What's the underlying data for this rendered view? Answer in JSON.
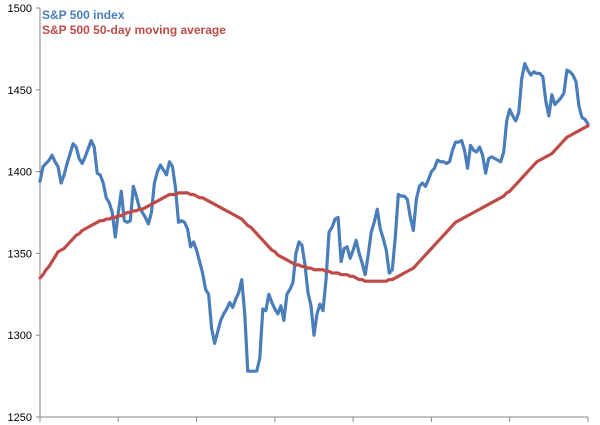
{
  "chart_data": {
    "type": "line",
    "title": "",
    "xlabel": "",
    "ylabel": "",
    "ylim": [
      1250,
      1500
    ],
    "yticks": [
      1250,
      1300,
      1350,
      1400,
      1450,
      1500
    ],
    "grid": false,
    "legend": "top-left",
    "series": [
      {
        "name": "S&P 500 index",
        "color": "#4a7ebb",
        "values": [
          1394,
          1403,
          1405,
          1407,
          1410,
          1406,
          1403,
          1393,
          1398,
          1405,
          1411,
          1417,
          1415,
          1408,
          1405,
          1409,
          1414,
          1419,
          1415,
          1399,
          1398,
          1393,
          1384,
          1381,
          1375,
          1360,
          1375,
          1388,
          1370,
          1369,
          1370,
          1391,
          1385,
          1378,
          1375,
          1372,
          1368,
          1375,
          1393,
          1400,
          1404,
          1401,
          1398,
          1406,
          1403,
          1390,
          1369,
          1370,
          1369,
          1365,
          1354,
          1357,
          1352,
          1345,
          1338,
          1328,
          1325,
          1304,
          1295,
          1302,
          1309,
          1313,
          1316,
          1320,
          1317,
          1322,
          1326,
          1334,
          1313,
          1278,
          1278,
          1278,
          1278,
          1286,
          1316,
          1315,
          1325,
          1320,
          1316,
          1313,
          1318,
          1309,
          1325,
          1328,
          1332,
          1350,
          1357,
          1355,
          1343,
          1326,
          1318,
          1300,
          1313,
          1319,
          1315,
          1334,
          1363,
          1366,
          1371,
          1372,
          1345,
          1353,
          1354,
          1347,
          1352,
          1358,
          1350,
          1344,
          1337,
          1349,
          1363,
          1369,
          1377,
          1365,
          1359,
          1352,
          1338,
          1340,
          1360,
          1386,
          1385,
          1385,
          1383,
          1372,
          1364,
          1383,
          1391,
          1393,
          1391,
          1395,
          1400,
          1402,
          1407,
          1406,
          1406,
          1405,
          1406,
          1413,
          1418,
          1418,
          1419,
          1413,
          1402,
          1416,
          1413,
          1412,
          1415,
          1410,
          1399,
          1408,
          1409,
          1408,
          1407,
          1406,
          1412,
          1431,
          1438,
          1434,
          1431,
          1436,
          1457,
          1466,
          1462,
          1459,
          1461,
          1460,
          1460,
          1458,
          1443,
          1434,
          1447,
          1441,
          1443,
          1445,
          1448,
          1462,
          1461,
          1459,
          1455,
          1440,
          1433,
          1432,
          1429
        ]
      },
      {
        "name": "S&P 500 50-day moving average",
        "color": "#be4b48",
        "values": [
          1335,
          1337,
          1340,
          1342,
          1345,
          1348,
          1351,
          1352,
          1353,
          1355,
          1357,
          1359,
          1361,
          1362,
          1364,
          1365,
          1366,
          1367,
          1368,
          1369,
          1370,
          1370,
          1371,
          1371,
          1372,
          1372,
          1373,
          1373,
          1374,
          1375,
          1375,
          1376,
          1376,
          1377,
          1377,
          1378,
          1379,
          1380,
          1381,
          1382,
          1383,
          1384,
          1385,
          1386,
          1386,
          1386,
          1387,
          1387,
          1387,
          1387,
          1386,
          1386,
          1385,
          1384,
          1384,
          1383,
          1382,
          1381,
          1380,
          1379,
          1378,
          1377,
          1376,
          1375,
          1374,
          1373,
          1372,
          1371,
          1369,
          1367,
          1366,
          1364,
          1362,
          1360,
          1358,
          1356,
          1354,
          1352,
          1351,
          1349,
          1348,
          1347,
          1346,
          1345,
          1344,
          1343,
          1343,
          1342,
          1342,
          1341,
          1341,
          1340,
          1340,
          1340,
          1340,
          1339,
          1339,
          1338,
          1338,
          1338,
          1337,
          1337,
          1337,
          1336,
          1336,
          1335,
          1334,
          1334,
          1333,
          1333,
          1333,
          1333,
          1333,
          1333,
          1333,
          1333,
          1334,
          1334,
          1335,
          1336,
          1337,
          1338,
          1339,
          1340,
          1341,
          1343,
          1345,
          1347,
          1349,
          1351,
          1353,
          1355,
          1357,
          1359,
          1361,
          1363,
          1365,
          1367,
          1369,
          1370,
          1371,
          1372,
          1373,
          1374,
          1375,
          1376,
          1377,
          1378,
          1379,
          1380,
          1381,
          1382,
          1383,
          1384,
          1385,
          1387,
          1388,
          1390,
          1392,
          1394,
          1396,
          1398,
          1400,
          1402,
          1404,
          1406,
          1407,
          1408,
          1409,
          1410,
          1411,
          1413,
          1415,
          1417,
          1419,
          1421,
          1422,
          1423,
          1424,
          1425,
          1426,
          1427,
          1428
        ]
      }
    ]
  }
}
